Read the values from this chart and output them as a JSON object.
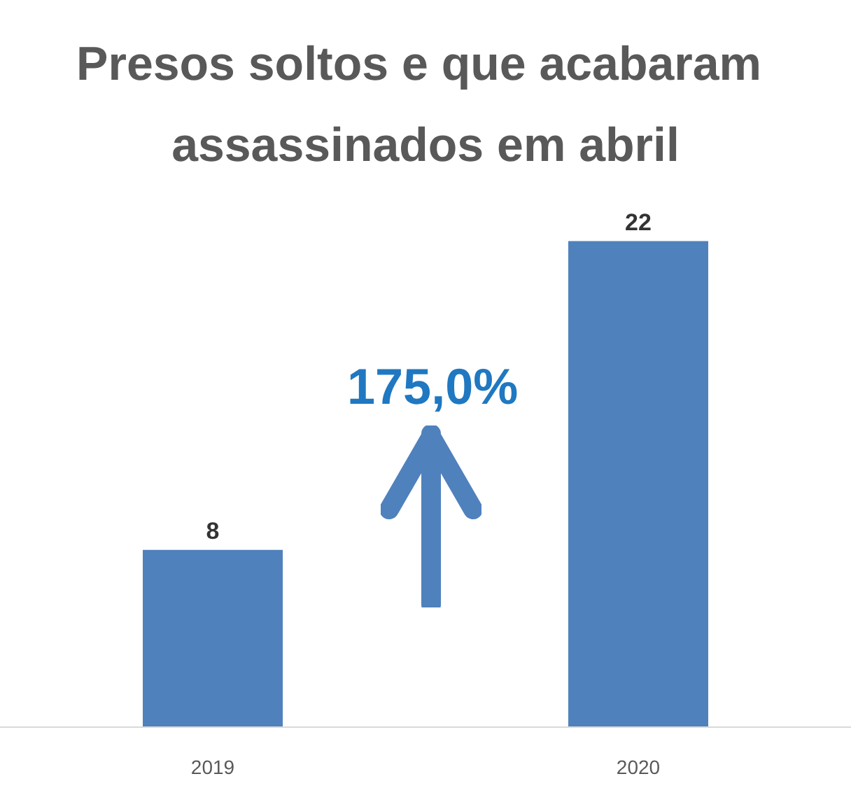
{
  "chart_data": {
    "type": "bar",
    "title": "Presos soltos e que acabaram assassinados em abril",
    "categories": [
      "2019",
      "2020"
    ],
    "values": [
      8,
      22
    ],
    "color": "#4f81bd",
    "data_labels": true,
    "annotations": [
      "175,0%"
    ]
  }
}
